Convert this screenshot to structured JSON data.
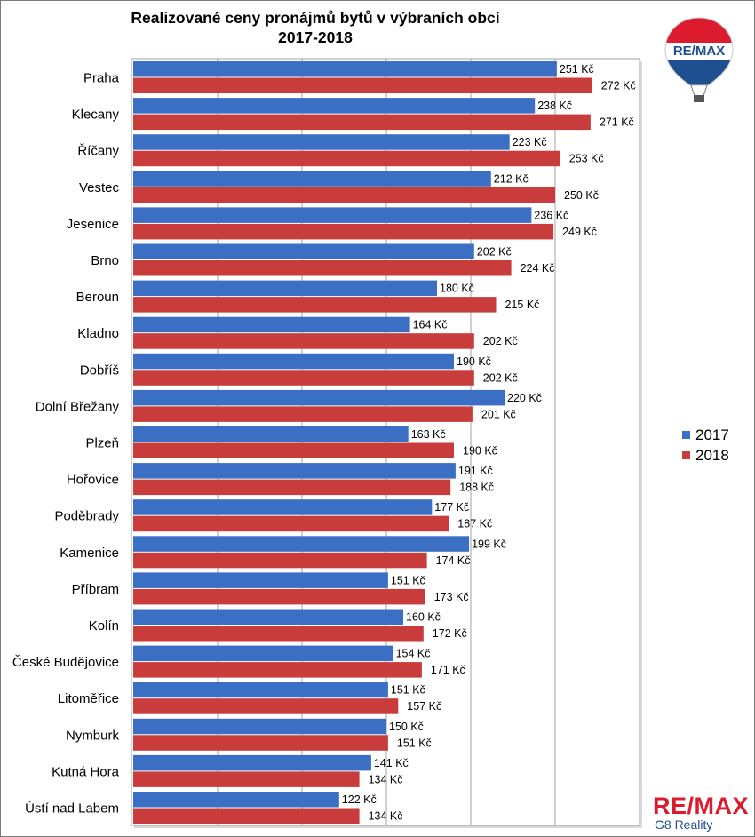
{
  "chart_data": {
    "type": "bar",
    "orientation": "horizontal",
    "title": "Realizované ceny pronájmů bytů v výbraních obcí",
    "subtitle": "2017-2018",
    "categories": [
      "Praha",
      "Klecany",
      "Říčany",
      "Vestec",
      "Jesenice",
      "Brno",
      "Beroun",
      "Kladno",
      "Dobříš",
      "Dolní Břežany",
      "Plzeň",
      "Hořovice",
      "Poděbrady",
      "Kamenice",
      "Příbram",
      "Kolín",
      "České Budějovice",
      "Litoměřice",
      "Nymburk",
      "Kutná Hora",
      "Ústí nad Labem"
    ],
    "series": [
      {
        "name": "2017",
        "color": "#3b6fc4",
        "values": [
          251,
          238,
          223,
          212,
          236,
          202,
          180,
          164,
          190,
          220,
          163,
          191,
          177,
          199,
          151,
          160,
          154,
          151,
          150,
          141,
          122
        ],
        "labels": [
          "251 Kč",
          "238 Kč",
          "223 Kč",
          "212 Kč",
          "236 Kč",
          "202 Kč",
          "180 Kč",
          "164 Kč",
          "190 Kč",
          "220 Kč",
          "163 Kč",
          "191 Kč",
          "177 Kč",
          "199 Kč",
          "151 Kč",
          "160 Kč",
          "154 Kč",
          "151 Kč",
          "150 Kč",
          "141 Kč",
          "122 Kč"
        ]
      },
      {
        "name": "2018",
        "color": "#c83c3c",
        "values": [
          272,
          271,
          253,
          250,
          249,
          224,
          215,
          202,
          202,
          201,
          190,
          188,
          187,
          174,
          173,
          172,
          171,
          157,
          151,
          134,
          134
        ],
        "labels": [
          "272 Kč",
          "271 Kč",
          "253 Kč",
          "250 Kč",
          "249 Kč",
          "224 Kč",
          "215 Kč",
          "202 Kč",
          "202 Kč",
          "201 Kč",
          "190 Kč",
          "188 Kč",
          "187 Kč",
          "174 Kč",
          "173 Kč",
          "172 Kč",
          "171 Kč",
          "157 Kč",
          "151 Kč",
          "134 Kč",
          "134 Kč"
        ]
      }
    ],
    "xlim": [
      0,
      300
    ],
    "gridlines": [
      50,
      100,
      150,
      200,
      250,
      300
    ],
    "grid": true,
    "legend": "right"
  },
  "branding": {
    "balloon_text": "RE/MAX",
    "logo_text": "RE/MAX",
    "logo_subtext": "G8 Reality",
    "brand_red": "#dc1c2e",
    "brand_blue": "#1d4f91"
  }
}
